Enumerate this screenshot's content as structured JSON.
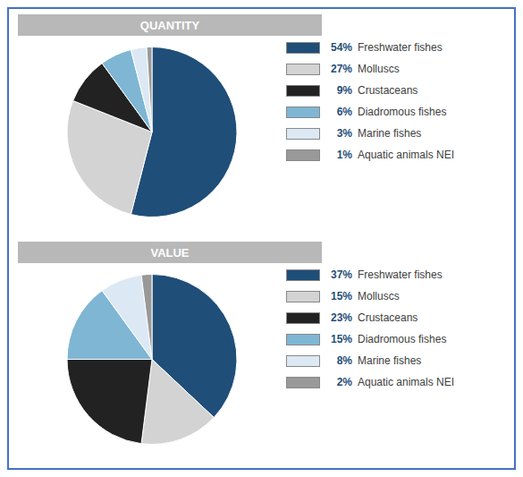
{
  "chart_data": [
    {
      "type": "pie",
      "title": "QUANTITY",
      "categories": [
        "Freshwater fishes",
        "Molluscs",
        "Crustaceans",
        "Diadromous fishes",
        "Marine fishes",
        "Aquatic animals NEI"
      ],
      "values": [
        54,
        27,
        9,
        6,
        3,
        1
      ],
      "value_labels": [
        "54%",
        "27%",
        "9%",
        "6%",
        "3%",
        "1%"
      ],
      "colors": [
        "#1f4e79",
        "#d3d3d3",
        "#222222",
        "#7eb6d4",
        "#dce9f5",
        "#999999"
      ],
      "legend": "right"
    },
    {
      "type": "pie",
      "title": "VALUE",
      "categories": [
        "Freshwater fishes",
        "Molluscs",
        "Crustaceans",
        "Diadromous fishes",
        "Marine fishes",
        "Aquatic animals NEI"
      ],
      "values": [
        37,
        15,
        23,
        15,
        8,
        2
      ],
      "value_labels": [
        "37%",
        "15%",
        "23%",
        "15%",
        "8%",
        "2%"
      ],
      "colors": [
        "#1f4e79",
        "#d3d3d3",
        "#222222",
        "#7eb6d4",
        "#dce9f5",
        "#999999"
      ],
      "legend": "right"
    }
  ]
}
